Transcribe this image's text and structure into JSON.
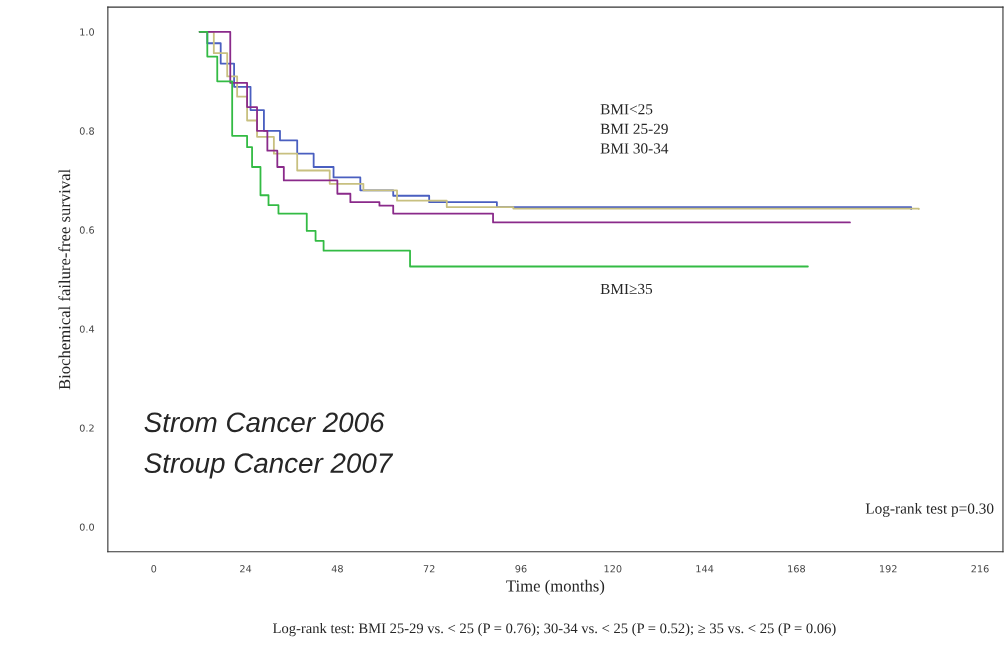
{
  "chart_data": {
    "type": "step",
    "xlabel": "Time (months)",
    "ylabel": "Biochemical failure-free survival",
    "xlim": [
      -12,
      222
    ],
    "ylim": [
      -0.05,
      1.05
    ],
    "xticks": [
      0,
      24,
      48,
      72,
      96,
      120,
      144,
      168,
      192,
      216
    ],
    "yticks": [
      {
        "value": 0,
        "label": "0.0"
      },
      {
        "value": 0.2,
        "label": "0.2"
      },
      {
        "value": 0.4,
        "label": "0.4"
      },
      {
        "value": 0.6,
        "label": "0.6"
      },
      {
        "value": 0.8,
        "label": "0.8"
      },
      {
        "value": 1,
        "label": "1.0"
      }
    ],
    "grid": false,
    "legend": false,
    "series": [
      {
        "color": "#4a5fc0",
        "x": [
          12,
          14,
          17.5,
          21,
          25.3,
          28.8,
          33,
          37.5,
          41.8,
          47,
          54,
          62.6,
          72,
          89.7,
          198
        ],
        "values": [
          1.0,
          0.977,
          0.936,
          0.889,
          0.842,
          0.8,
          0.781,
          0.754,
          0.727,
          0.706,
          0.68,
          0.669,
          0.656,
          0.646,
          0.642
        ]
      },
      {
        "color": "#c8c080",
        "x": [
          12,
          15.7,
          19.2,
          21.8,
          24.4,
          27,
          31.4,
          37.5,
          46,
          54.8,
          63.6,
          76.6,
          94,
          200
        ],
        "values": [
          1.0,
          0.957,
          0.91,
          0.869,
          0.821,
          0.788,
          0.754,
          0.72,
          0.693,
          0.68,
          0.659,
          0.646,
          0.643,
          0.642
        ]
      },
      {
        "color": "#8a2a8a",
        "x": [
          12,
          20,
          24.4,
          27,
          29.7,
          32.3,
          34,
          48,
          51.4,
          59,
          62.6,
          88.7,
          182
        ],
        "values": [
          1.0,
          0.897,
          0.848,
          0.8,
          0.76,
          0.727,
          0.7,
          0.673,
          0.656,
          0.649,
          0.633,
          0.615,
          0.615
        ]
      },
      {
        "color": "#33bb44",
        "x": [
          12,
          14,
          16.6,
          20.5,
          24.4,
          25.7,
          27.9,
          30,
          32.6,
          40,
          42.3,
          44.4,
          67,
          171
        ],
        "values": [
          1.0,
          0.95,
          0.9,
          0.79,
          0.767,
          0.727,
          0.67,
          0.65,
          0.633,
          0.598,
          0.578,
          0.558,
          0.526,
          0.526
        ]
      }
    ],
    "annotations": [
      "BMI<25",
      "BMI 25-29",
      "BMI 30-34",
      "BMI≥35",
      "Strom Cancer 2006",
      "Stroup Cancer 2007",
      "Log-rank test p=0.30",
      "Log-rank test: BMI 25-29 vs. < 25 (P = 0.76); 30-34 vs. < 25 (P = 0.52); ≥ 35 vs. < 25 (P = 0.06)"
    ]
  }
}
